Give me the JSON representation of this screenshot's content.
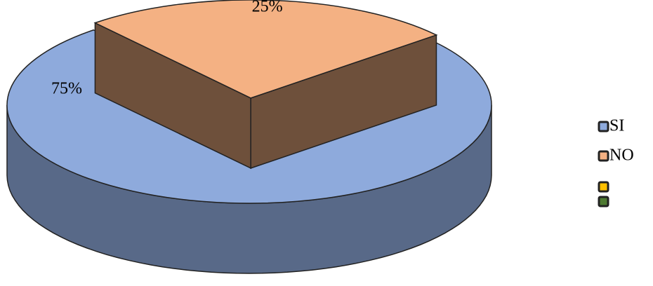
{
  "chart_data": {
    "type": "pie",
    "categories": [
      "SI",
      "NO",
      null,
      null
    ],
    "values": [
      75,
      25,
      null,
      null
    ],
    "value_labels": [
      "75%",
      "25%",
      null,
      null
    ],
    "colors": [
      "#8eaadc",
      "#f4b183",
      "#ffc000",
      "#4e7a32"
    ],
    "exploded": [
      false,
      true,
      false,
      false
    ],
    "legend": "right"
  }
}
